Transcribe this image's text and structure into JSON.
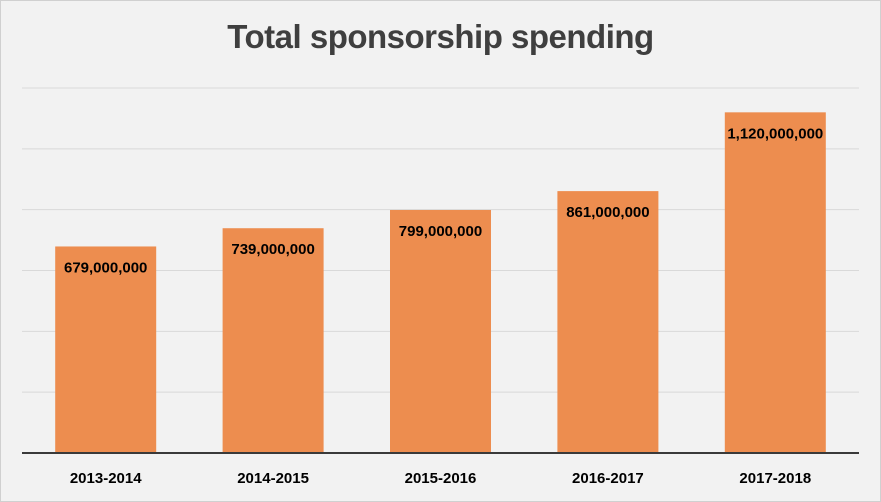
{
  "chart_data": {
    "type": "bar",
    "title": "Total sponsorship spending",
    "categories": [
      "2013-2014",
      "2014-2015",
      "2015-2016",
      "2016-2017",
      "2017-2018"
    ],
    "values": [
      679000000,
      739000000,
      799000000,
      861000000,
      1120000000
    ],
    "data_labels": [
      "679,000,000",
      "739,000,000",
      "799,000,000",
      "861,000,000",
      "1,120,000,000"
    ],
    "xlabel": "",
    "ylabel": "",
    "ylim": [
      0,
      1200000000
    ],
    "ytick_step": 200000000,
    "grid": true,
    "legend": "none",
    "bar_color": "#ed8d4f",
    "background_color": "#f2f2f2"
  }
}
